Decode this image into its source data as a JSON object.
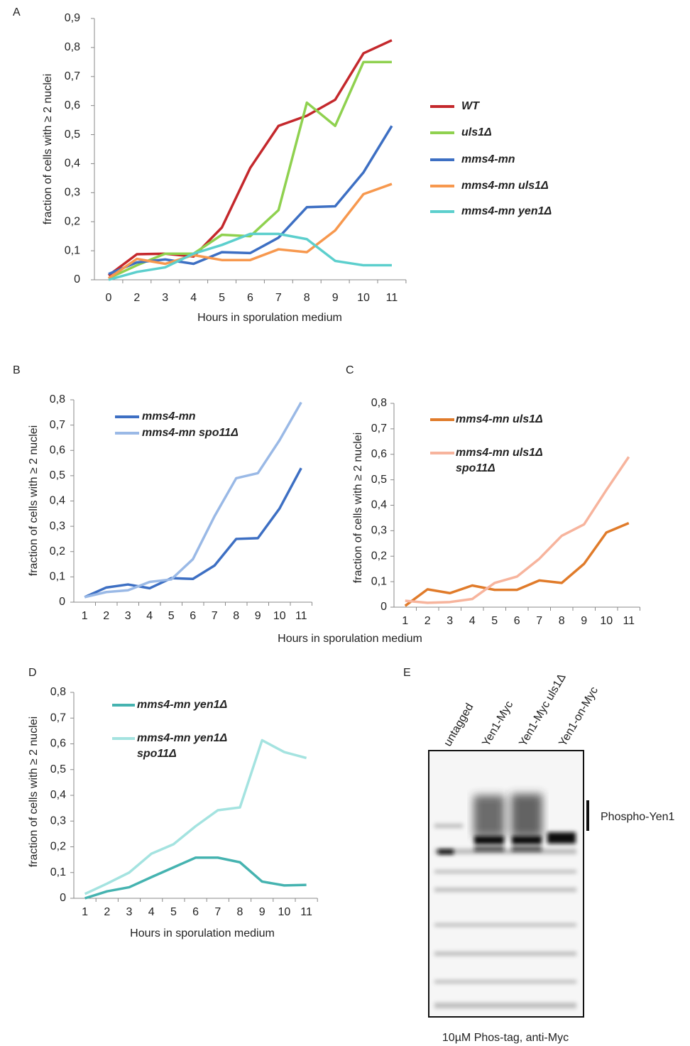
{
  "chart_data": [
    {
      "type": "line",
      "panel": "A",
      "ylabel": "fraction of cells with ≥ 2 nuclei",
      "xlabel": "Hours in sporulation medium",
      "categories": [
        "0",
        "2",
        "3",
        "4",
        "5",
        "6",
        "7",
        "8",
        "9",
        "10",
        "11"
      ],
      "ylim": [
        0,
        0.9
      ],
      "yticks": [
        {
          "value": 0,
          "label": "0"
        },
        {
          "value": 0.1,
          "label": "0,1"
        },
        {
          "value": 0.2,
          "label": "0,2"
        },
        {
          "value": 0.3,
          "label": "0,3"
        },
        {
          "value": 0.4,
          "label": "0,4"
        },
        {
          "value": 0.5,
          "label": "0,5"
        },
        {
          "value": 0.6,
          "label": "0,6"
        },
        {
          "value": 0.7,
          "label": "0,7"
        },
        {
          "value": 0.8,
          "label": "0,8"
        },
        {
          "value": 0.9,
          "label": "0,9"
        }
      ],
      "series": [
        {
          "name": "WT",
          "color": "#c4282c",
          "values": [
            0.015,
            0.088,
            0.09,
            0.08,
            0.18,
            0.385,
            0.53,
            0.565,
            0.62,
            0.78,
            0.825
          ]
        },
        {
          "name": "uls1Δ",
          "color": "#8fd14f",
          "values": [
            0.005,
            0.05,
            0.09,
            0.09,
            0.155,
            0.15,
            0.24,
            0.61,
            0.53,
            0.75,
            0.75
          ]
        },
        {
          "name": "mms4-mn",
          "color": "#3d6fc3",
          "values": [
            0.02,
            0.06,
            0.07,
            0.055,
            0.095,
            0.092,
            0.145,
            0.25,
            0.253,
            0.37,
            0.53
          ]
        },
        {
          "name": "mms4-mn uls1Δ",
          "color": "#f7984e",
          "values": [
            0.005,
            0.072,
            0.055,
            0.085,
            0.068,
            0.068,
            0.105,
            0.095,
            0.17,
            0.295,
            0.33
          ]
        },
        {
          "name": "mms4-mn yen1Δ",
          "color": "#5ccfcd",
          "values": [
            0,
            0.027,
            0.043,
            0.09,
            0.12,
            0.158,
            0.158,
            0.14,
            0.065,
            0.05,
            0.05
          ]
        }
      ]
    },
    {
      "type": "line",
      "panel": "B",
      "ylabel": "fraction of cells with ≥ 2 nuclei",
      "xlabel": "Hours in sporulation medium",
      "categories": [
        "1",
        "2",
        "3",
        "4",
        "5",
        "6",
        "7",
        "8",
        "9",
        "10",
        "11"
      ],
      "ylim": [
        0,
        0.8
      ],
      "yticks": [
        {
          "value": 0,
          "label": "0"
        },
        {
          "value": 0.1,
          "label": "0,1"
        },
        {
          "value": 0.2,
          "label": "0,2"
        },
        {
          "value": 0.3,
          "label": "0,3"
        },
        {
          "value": 0.4,
          "label": "0,4"
        },
        {
          "value": 0.5,
          "label": "0,5"
        },
        {
          "value": 0.6,
          "label": "0,6"
        },
        {
          "value": 0.7,
          "label": "0,7"
        },
        {
          "value": 0.8,
          "label": "0,8"
        }
      ],
      "series": [
        {
          "name": "mms4-mn",
          "color": "#3d6fc3",
          "values": [
            0.02,
            0.058,
            0.07,
            0.055,
            0.095,
            0.092,
            0.145,
            0.25,
            0.253,
            0.37,
            0.53
          ]
        },
        {
          "name": "mms4-mn spo11Δ",
          "color": "#9ab9e6",
          "values": [
            0.02,
            0.04,
            0.047,
            0.08,
            0.09,
            0.17,
            0.34,
            0.49,
            0.51,
            0.64,
            0.79
          ]
        }
      ]
    },
    {
      "type": "line",
      "panel": "C",
      "ylabel": "fraction of cells with ≥ 2 nuclei",
      "categories": [
        "1",
        "2",
        "3",
        "4",
        "5",
        "6",
        "7",
        "8",
        "9",
        "10",
        "11"
      ],
      "ylim": [
        0,
        0.8
      ],
      "yticks": [
        {
          "value": 0,
          "label": "0"
        },
        {
          "value": 0.1,
          "label": "0,1"
        },
        {
          "value": 0.2,
          "label": "0,2"
        },
        {
          "value": 0.3,
          "label": "0,3"
        },
        {
          "value": 0.4,
          "label": "0,4"
        },
        {
          "value": 0.5,
          "label": "0,5"
        },
        {
          "value": 0.6,
          "label": "0,6"
        },
        {
          "value": 0.7,
          "label": "0,7"
        },
        {
          "value": 0.8,
          "label": "0,8"
        }
      ],
      "series": [
        {
          "name": "mms4-mn uls1Δ",
          "color": "#e07b2a",
          "values": [
            0.005,
            0.07,
            0.055,
            0.085,
            0.068,
            0.068,
            0.105,
            0.095,
            0.17,
            0.293,
            0.33
          ]
        },
        {
          "name": "mms4-mn uls1Δ spo11Δ",
          "color": "#f7b49d",
          "values": [
            0.025,
            0.017,
            0.02,
            0.032,
            0.095,
            0.12,
            0.19,
            0.28,
            0.325,
            0.46,
            0.59
          ]
        }
      ]
    },
    {
      "type": "line",
      "panel": "D",
      "ylabel": "fraction of cells with ≥ 2 nuclei",
      "xlabel": "Hours in sporulation medium",
      "categories": [
        "1",
        "2",
        "3",
        "4",
        "5",
        "6",
        "7",
        "8",
        "9",
        "10",
        "11"
      ],
      "ylim": [
        0,
        0.8
      ],
      "yticks": [
        {
          "value": 0,
          "label": "0"
        },
        {
          "value": 0.1,
          "label": "0,1"
        },
        {
          "value": 0.2,
          "label": "0,2"
        },
        {
          "value": 0.3,
          "label": "0,3"
        },
        {
          "value": 0.4,
          "label": "0,4"
        },
        {
          "value": 0.5,
          "label": "0,5"
        },
        {
          "value": 0.6,
          "label": "0,6"
        },
        {
          "value": 0.7,
          "label": "0,7"
        },
        {
          "value": 0.8,
          "label": "0,8"
        }
      ],
      "series": [
        {
          "name": "mms4-mn yen1Δ",
          "color": "#45b3b0",
          "values": [
            0,
            0.027,
            0.043,
            0.082,
            0.12,
            0.158,
            0.158,
            0.14,
            0.065,
            0.05,
            0.052
          ]
        },
        {
          "name": "mms4-mn yen1Δ spo11Δ",
          "color": "#a4e3e0",
          "values": [
            0.017,
            0.057,
            0.1,
            0.173,
            0.21,
            0.28,
            0.342,
            0.353,
            0.614,
            0.568,
            0.545
          ]
        }
      ]
    }
  ],
  "blot": {
    "panel": "E",
    "lanes": [
      "untagged",
      "Yen1-Myc",
      "Yen1-Myc uls1Δ",
      "Yen1-on-Myc"
    ],
    "band_label": "Phospho-Yen1",
    "caption": "10µM Phos-tag, anti-Myc"
  }
}
